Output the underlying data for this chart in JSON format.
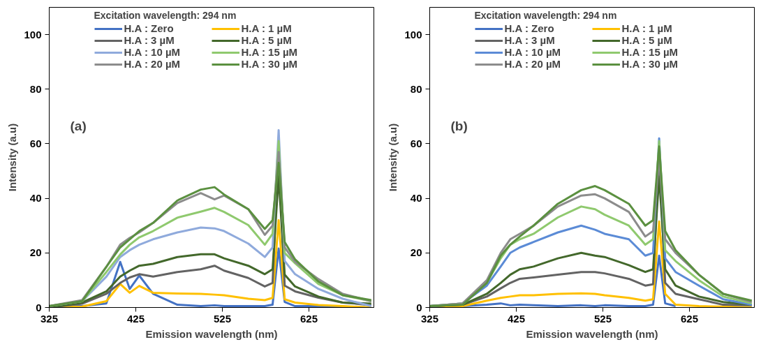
{
  "chart_data": [
    {
      "type": "line",
      "legend_title": "Excitation wavelength: 294 nm",
      "xlabel": "Emission wavelength (nm)",
      "ylabel": "Intensity (a.u)",
      "annotations": [
        "(a)"
      ],
      "legend": "top",
      "grid": false,
      "marker": "none",
      "line_style": "solid",
      "xlim": [
        325,
        700
      ],
      "xticks": [
        325,
        425,
        525,
        625
      ],
      "ylim": [
        0,
        110
      ],
      "yticks": [
        0,
        20,
        40,
        60,
        80,
        100
      ],
      "x": [
        325,
        363,
        391,
        407,
        418,
        429,
        445,
        473,
        500,
        516,
        527,
        555,
        574,
        583,
        590,
        597,
        609,
        636,
        664,
        697
      ],
      "series": [
        {
          "name": "H.A : Zero",
          "color": "#4472c4",
          "values": [
            0.5,
            0.5,
            1.5,
            16.7,
            6.8,
            11.7,
            5,
            1,
            0.5,
            0.8,
            0.5,
            0.5,
            0.5,
            1,
            21.6,
            2,
            0.5,
            0.5,
            0.3,
            0
          ]
        },
        {
          "name": "H.A : 1 µM",
          "color": "#ffc000",
          "values": [
            0,
            0.3,
            2.3,
            8.6,
            5.4,
            7.9,
            5.4,
            5.1,
            5,
            4.7,
            4.5,
            3.2,
            2.7,
            3.5,
            32,
            3,
            1.8,
            0.9,
            0.5,
            0
          ]
        },
        {
          "name": "H.A : 3 µM",
          "color": "#636363",
          "values": [
            0,
            1.4,
            5,
            9,
            11,
            12.2,
            11.3,
            13,
            14,
            15.3,
            13.5,
            10.8,
            7.7,
            9,
            58,
            8,
            5.9,
            3.6,
            1.8,
            0.9
          ]
        },
        {
          "name": "H.A : 5 µM",
          "color": "#43682b",
          "values": [
            0,
            1.8,
            5.9,
            11.3,
            13.5,
            15.3,
            16,
            18.5,
            19.5,
            19.5,
            18,
            15.3,
            12.2,
            14,
            48,
            12,
            7.7,
            4,
            1.8,
            1.4
          ]
        },
        {
          "name": "H.A : 10 µM",
          "color": "#8faadc",
          "values": [
            0.5,
            2.3,
            11.3,
            18.5,
            21,
            23,
            25,
            27.5,
            29.3,
            29,
            28,
            23.4,
            18.5,
            22,
            65,
            17,
            12.2,
            6.8,
            3.2,
            0.5
          ]
        },
        {
          "name": "H.A : 15 µM",
          "color": "#8fc96e",
          "values": [
            0.5,
            2.3,
            13,
            19.4,
            23,
            25.7,
            28,
            32.9,
            35.1,
            36.5,
            35,
            30.2,
            23,
            27,
            61,
            20,
            16.2,
            8.6,
            4.5,
            2.3
          ]
        },
        {
          "name": "H.A : 20 µM",
          "color": "#8c8c8c",
          "values": [
            0.5,
            2.7,
            14.9,
            23,
            25.5,
            27.5,
            31,
            38.3,
            41.9,
            39.6,
            41,
            36,
            26.6,
            30,
            57,
            22,
            16.7,
            10.4,
            5,
            2.3
          ]
        },
        {
          "name": "H.A : 30 µM",
          "color": "#5b9040",
          "values": [
            0.5,
            2.3,
            14.9,
            22,
            25,
            28,
            31,
            39.2,
            43.2,
            44.1,
            41.4,
            36,
            28.8,
            32,
            53,
            24,
            17.6,
            9.5,
            4.5,
            2.7
          ]
        }
      ]
    },
    {
      "type": "line",
      "legend_title": "Excitation wavelength: 294 nm",
      "xlabel": "Emission wavelength (nm)",
      "ylabel": "Intensity (a.u)",
      "annotations": [
        "(b)"
      ],
      "legend": "top",
      "grid": false,
      "marker": "none",
      "line_style": "solid",
      "xlim": [
        325,
        700
      ],
      "xticks": [
        325,
        425,
        525,
        625
      ],
      "ylim": [
        0,
        110
      ],
      "yticks": [
        0,
        20,
        40,
        60,
        80,
        100
      ],
      "x": [
        325,
        363,
        391,
        407,
        418,
        429,
        445,
        473,
        500,
        516,
        527,
        555,
        574,
        583,
        590,
        597,
        609,
        636,
        664,
        697
      ],
      "series": [
        {
          "name": "H.A : Zero",
          "color": "#4472c4",
          "values": [
            0.5,
            0.5,
            1,
            1.5,
            0.8,
            1,
            0.8,
            0.5,
            0.8,
            0.5,
            0.8,
            0.5,
            0.5,
            1,
            19,
            1.5,
            0.5,
            null,
            0.3,
            0
          ]
        },
        {
          "name": "H.A : 1 µM",
          "color": "#ffc000",
          "values": [
            0,
            0.5,
            2.5,
            3.5,
            4,
            4.5,
            4.5,
            5,
            5.2,
            5,
            4.5,
            3.5,
            2.5,
            3,
            31.5,
            5,
            1,
            0.5,
            0.3,
            0
          ]
        },
        {
          "name": "H.A : 3 µM",
          "color": "#636363",
          "values": [
            0.5,
            1,
            4,
            7,
            9,
            10.5,
            11,
            12,
            13,
            13,
            12.5,
            10.5,
            8,
            8.5,
            57,
            9,
            5,
            3,
            1,
            0.8
          ]
        },
        {
          "name": "H.A : 5 µM",
          "color": "#43682b",
          "values": [
            0.5,
            1,
            5,
            9,
            12,
            14,
            15,
            18,
            20,
            19,
            18.5,
            15.5,
            13,
            14,
            48,
            14,
            8,
            4,
            2,
            1
          ]
        },
        {
          "name": "H.A : 10 µM",
          "color": "#5b8bd6",
          "values": [
            0.5,
            1.5,
            8,
            15,
            20,
            22,
            24,
            27.5,
            30,
            28.5,
            27,
            25,
            19,
            20,
            62,
            18,
            13,
            8,
            3,
            1
          ]
        },
        {
          "name": "H.A : 15 µM",
          "color": "#8fc96e",
          "values": [
            0.5,
            1.5,
            9,
            18,
            23,
            25,
            27,
            33,
            37,
            36,
            34,
            30,
            23,
            25,
            61,
            21,
            17,
            10,
            4,
            1.5
          ]
        },
        {
          "name": "H.A : 20 µM",
          "color": "#8c8c8c",
          "values": [
            0.5,
            1.5,
            10,
            20,
            25,
            27,
            30,
            37,
            41,
            41.5,
            40,
            35,
            26,
            28,
            55,
            25,
            20,
            12,
            5,
            2
          ]
        },
        {
          "name": "H.A : 30 µM",
          "color": "#5b9040",
          "values": [
            0.5,
            1,
            9,
            19,
            23,
            26,
            30,
            38,
            43,
            44.5,
            43,
            38,
            30,
            32,
            59,
            28,
            21,
            12,
            5,
            2.5
          ]
        }
      ]
    }
  ]
}
